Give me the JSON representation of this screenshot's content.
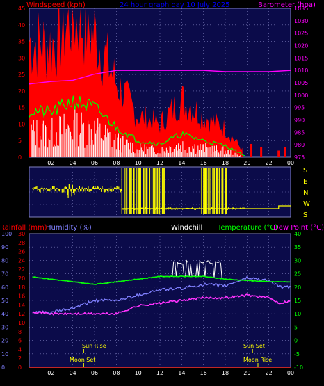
{
  "header_top": {
    "windspeed_label": "Windspeed (kph)",
    "title": "24 hour graph day 10 July 2025",
    "barometer_label": "Barometer (hpa)"
  },
  "header_bottom": {
    "rainfall_label": "Rainfall (mm)",
    "humidity_label": "Humidity (%)",
    "windchill_label": "Windchill",
    "temperature_label": "Temperature (°C)",
    "dewpoint_label": "Dew Point (°C)"
  },
  "x_ticks": [
    "02",
    "04",
    "06",
    "08",
    "10",
    "12",
    "14",
    "16",
    "18",
    "20",
    "22",
    "00"
  ],
  "direction_labels": [
    "S",
    "E",
    "N",
    "W",
    "S"
  ],
  "astro": {
    "sun_rise": "Sun Rise",
    "moon_set": "Moon Set",
    "sun_set": "Sun Set",
    "moon_rise": "Moon Rise"
  },
  "colors": {
    "plot_bg": "#0b0b4a",
    "grid": "#8080c0",
    "wind_gust": "#ff0000",
    "wind_avg": "#00ff00",
    "wind_speed": "#ffffff",
    "barometer": "#ff00ff",
    "direction": "#ffff00",
    "temperature": "#00ff00",
    "dewpoint": "#ff33ff",
    "humidity": "#8080ff",
    "windchill": "#ffffff",
    "rainfall": "#ff3333",
    "label_red": "#ff0000",
    "label_blue": "#0000ff",
    "label_magenta": "#ff00ff",
    "label_yellow": "#ffff00",
    "label_green": "#00ff00",
    "label_humidity": "#8080ff"
  },
  "chart_data": [
    {
      "type": "line",
      "title": "24 hour graph day 10 July 2025",
      "x": [
        0,
        2,
        4,
        6,
        8,
        10,
        12,
        14,
        16,
        18,
        19.5,
        20,
        22,
        24
      ],
      "series": [
        {
          "name": "Windspeed (kph)",
          "axis": "left",
          "values": [
            28,
            27,
            34,
            30,
            18,
            10,
            8,
            14,
            10,
            7,
            2,
            0,
            0,
            0
          ]
        },
        {
          "name": "Barometer (hpa)",
          "axis": "right",
          "values": [
            1004.5,
            1005.5,
            1006,
            1008.5,
            1010,
            1010,
            1010,
            1010,
            1010,
            1009.5,
            1009.5,
            1009.5,
            1009.5,
            1010
          ]
        }
      ],
      "left_axis": {
        "label": "Windspeed (kph)",
        "ylim": [
          0,
          45
        ],
        "ticks": [
          0,
          5,
          10,
          15,
          20,
          25,
          30,
          35,
          40,
          45
        ]
      },
      "right_axis": {
        "label": "Barometer (hpa)",
        "ylim": [
          975,
          1035
        ],
        "ticks": [
          975,
          980,
          985,
          990,
          995,
          1000,
          1005,
          1010,
          1015,
          1020,
          1025,
          1030,
          1035
        ]
      }
    },
    {
      "type": "line",
      "title": "",
      "x": [
        0,
        4,
        8,
        8.5,
        10,
        14,
        16,
        18,
        19.8,
        20,
        22,
        24
      ],
      "series": [
        {
          "name": "",
          "values": [
            "E",
            "E",
            "E",
            "W",
            "W",
            "W",
            "W",
            "W",
            "W",
            "W",
            "W",
            "W"
          ]
        }
      ],
      "y_categories": [
        "S",
        "E",
        "N",
        "W",
        "S"
      ]
    },
    {
      "type": "line",
      "title": "",
      "x": [
        0,
        2,
        4,
        6,
        8,
        10,
        12,
        14,
        16,
        18,
        20,
        22,
        23,
        24
      ],
      "series": [
        {
          "name": "Temperature (°C)",
          "axis": "right",
          "values": [
            24,
            23,
            22,
            21,
            22,
            23,
            24,
            24,
            24,
            23,
            22.5,
            22,
            22,
            22
          ]
        },
        {
          "name": "Dew Point (°C)",
          "axis": "right",
          "values": [
            11,
            10,
            10,
            10,
            10,
            13,
            14,
            15,
            16,
            16,
            17,
            16,
            14,
            15
          ]
        },
        {
          "name": "Humidity (%)",
          "axis": "left",
          "values": [
            41,
            41,
            44,
            50,
            50,
            54,
            58,
            59,
            62,
            61,
            67,
            65,
            60,
            60
          ]
        },
        {
          "name": "Windchill",
          "axis": "right",
          "values": [
            24,
            23,
            22,
            21,
            22,
            23,
            24,
            28,
            29,
            23,
            22.5,
            22,
            22,
            22
          ]
        },
        {
          "name": "Rainfall (mm)",
          "axis": "left2",
          "values": [
            0,
            0,
            0,
            0,
            0,
            0,
            0,
            0,
            0,
            0,
            0,
            0,
            0,
            0
          ]
        }
      ],
      "axis_humidity_left": {
        "label": "Humidity (%)",
        "ylim": [
          0,
          100
        ],
        "ticks": [
          0,
          10,
          20,
          30,
          40,
          50,
          60,
          70,
          80,
          90,
          100
        ]
      },
      "axis_rain_left": {
        "label": "Rainfall (mm)",
        "ylim": [
          0,
          30
        ],
        "ticks": [
          0,
          2,
          4,
          6,
          8,
          10,
          12,
          14,
          16,
          18,
          20,
          22,
          24,
          26,
          28,
          30
        ]
      },
      "axis_temp_right": {
        "label": "Temperature (°C)",
        "ylim": [
          -10,
          40
        ],
        "ticks": [
          -10,
          -5,
          0,
          5,
          10,
          15,
          20,
          25,
          30,
          35,
          40
        ]
      },
      "events": {
        "sun_rise": 5,
        "moon_set": 5,
        "sun_set": 20.5,
        "moon_rise": 21
      }
    }
  ]
}
